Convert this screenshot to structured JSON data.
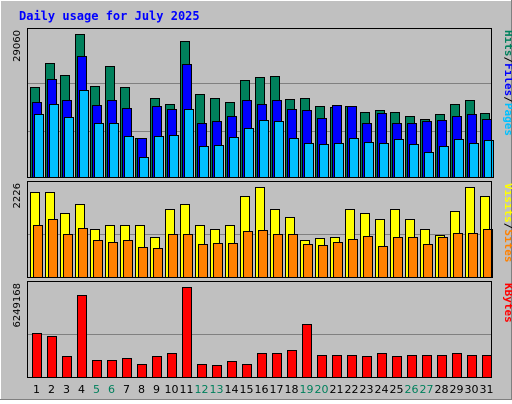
{
  "colors": {
    "background": "#c0c0c0",
    "panel_border": "#000000",
    "grid": "#808080",
    "title_color": "#0000ff",
    "weekday_tick": "#000000",
    "weekend_tick": "#00805c",
    "hits": "#00805c",
    "files": "#0000ff",
    "pages": "#00c0ff",
    "visits": "#ffff00",
    "sites": "#ff8000",
    "kbytes": "#ff0000"
  },
  "chart_data": [
    {
      "type": "bar",
      "panel": "top",
      "title": "Daily usage for July 2025",
      "categories": [
        "1",
        "2",
        "3",
        "4",
        "5",
        "6",
        "7",
        "8",
        "9",
        "10",
        "11",
        "12",
        "13",
        "14",
        "15",
        "16",
        "17",
        "18",
        "19",
        "20",
        "21",
        "22",
        "23",
        "24",
        "25",
        "26",
        "27",
        "28",
        "29",
        "30",
        "31"
      ],
      "weekend_days": [
        "5",
        "6",
        "12",
        "13",
        "19",
        "20",
        "26",
        "27"
      ],
      "ylabel_max": "29060",
      "ymax": 29060,
      "legend_side": [
        "Pages",
        "/",
        "Files",
        "/",
        "Hits"
      ],
      "series": [
        {
          "name": "Hits",
          "values": [
            18300,
            23200,
            20700,
            29100,
            18500,
            22700,
            18300,
            8100,
            16100,
            15000,
            27600,
            17000,
            16200,
            15400,
            19800,
            20300,
            20600,
            16000,
            16100,
            14600,
            14400,
            14500,
            13400,
            13700,
            13300,
            12600,
            12000,
            12900,
            15000,
            15700,
            13200
          ]
        },
        {
          "name": "Files",
          "values": [
            15300,
            20000,
            15800,
            24700,
            14800,
            15800,
            14200,
            8000,
            14500,
            13900,
            23000,
            11100,
            11500,
            12600,
            15700,
            15000,
            15700,
            14000,
            13800,
            12100,
            14700,
            14500,
            11200,
            13100,
            11200,
            11200,
            11600,
            11800,
            12500,
            13000,
            11900
          ]
        },
        {
          "name": "Pages",
          "values": [
            13000,
            15000,
            12300,
            17800,
            11000,
            11000,
            8400,
            4200,
            8400,
            8700,
            13900,
            6400,
            6600,
            8200,
            10100,
            11700,
            11600,
            8000,
            7100,
            6900,
            7000,
            8000,
            7300,
            7100,
            7900,
            6900,
            5300,
            6400,
            7900,
            7000,
            7700
          ]
        }
      ]
    },
    {
      "type": "bar",
      "panel": "middle",
      "categories": [
        "1",
        "2",
        "3",
        "4",
        "5",
        "6",
        "7",
        "8",
        "9",
        "10",
        "11",
        "12",
        "13",
        "14",
        "15",
        "16",
        "17",
        "18",
        "19",
        "20",
        "21",
        "22",
        "23",
        "24",
        "25",
        "26",
        "27",
        "28",
        "29",
        "30",
        "31"
      ],
      "ylabel_max": "2226",
      "ymax": 2226,
      "legend_side": [
        "Sites",
        "/",
        "Visits"
      ],
      "series": [
        {
          "name": "Visits",
          "values": [
            2100,
            2100,
            1600,
            1800,
            1200,
            1300,
            1300,
            1300,
            1000,
            1700,
            1800,
            1300,
            1200,
            1300,
            2000,
            2226,
            1700,
            1500,
            930,
            970,
            1000,
            1700,
            1600,
            1450,
            1700,
            1450,
            1200,
            1050,
            1650,
            2226,
            2000
          ]
        },
        {
          "name": "Sites",
          "values": [
            1300,
            1450,
            1080,
            1230,
            930,
            890,
            930,
            750,
            730,
            1070,
            1070,
            840,
            850,
            850,
            1150,
            1170,
            1070,
            1070,
            830,
            810,
            870,
            960,
            1030,
            790,
            1000,
            1000,
            840,
            1000,
            1100,
            1100,
            1200
          ]
        }
      ]
    },
    {
      "type": "bar",
      "panel": "bottom",
      "categories": [
        "1",
        "2",
        "3",
        "4",
        "5",
        "6",
        "7",
        "8",
        "9",
        "10",
        "11",
        "12",
        "13",
        "14",
        "15",
        "16",
        "17",
        "18",
        "19",
        "20",
        "21",
        "22",
        "23",
        "24",
        "25",
        "26",
        "27",
        "28",
        "29",
        "30",
        "31"
      ],
      "ylabel_max": "6249168",
      "ymax": 6249168,
      "legend_side": [
        "KBytes"
      ],
      "series": [
        {
          "name": "KBytes",
          "values": [
            3100000,
            2900000,
            1500000,
            5700000,
            1250000,
            1250000,
            1400000,
            950000,
            1500000,
            1750000,
            6249168,
            950000,
            900000,
            1200000,
            950000,
            1700000,
            1750000,
            1900000,
            3700000,
            1550000,
            1550000,
            1550000,
            1500000,
            1750000,
            1500000,
            1600000,
            1550000,
            1550000,
            1700000,
            1600000,
            1600000
          ]
        }
      ]
    }
  ]
}
